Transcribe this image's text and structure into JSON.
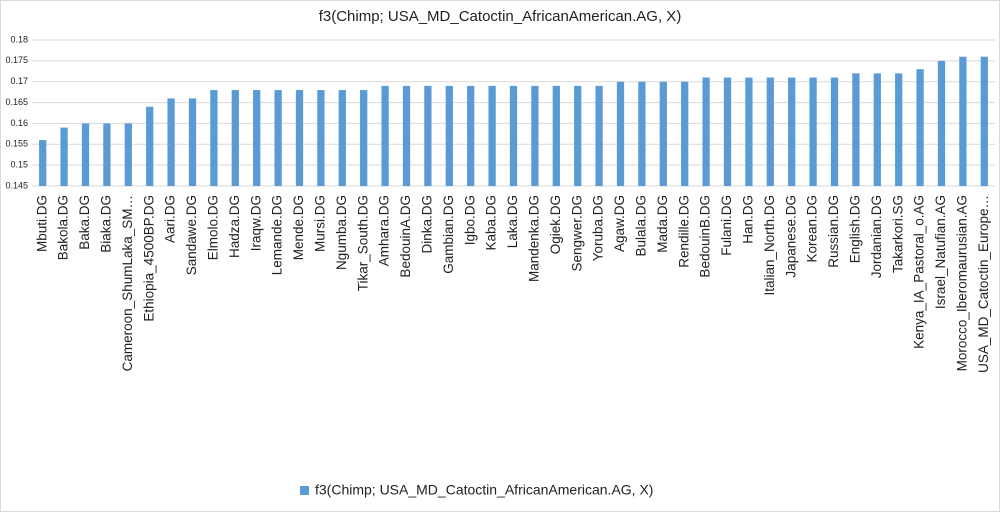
{
  "chart_data": {
    "type": "bar",
    "title": "f3(Chimp; USA_MD_Catoctin_AfricanAmerican.AG, X)",
    "categories": [
      "Mbuti.DG",
      "Bakola.DG",
      "Baka.DG",
      "Biaka.DG",
      "Cameroon_ShumLaka_SM…",
      "Ethiopia_4500BP.DG",
      "Aari.DG",
      "Sandawe.DG",
      "Elmolo.DG",
      "Hadza.DG",
      "Iraqw.DG",
      "Lemande.DG",
      "Mende.DG",
      "Mursi.DG",
      "Ngumba.DG",
      "Tikar_South.DG",
      "Amhara.DG",
      "BedouinA.DG",
      "Dinka.DG",
      "Gambian.DG",
      "Igbo.DG",
      "Kaba.DG",
      "Laka.DG",
      "Mandenka.DG",
      "Ogiek.DG",
      "Sengwer.DG",
      "Yoruba.DG",
      "Agaw.DG",
      "Bulala.DG",
      "Mada.DG",
      "Rendille.DG",
      "BedouinB.DG",
      "Fulani.DG",
      "Han.DG",
      "Italian_North.DG",
      "Japanese.DG",
      "Korean.DG",
      "Russian.DG",
      "English.DG",
      "Jordanian.DG",
      "Takarkori.SG",
      "Kenya_IA_Pastoral_o.AG",
      "Israel_Natufian.AG",
      "Morocco_Iberomaurusian.AG",
      "USA_MD_Catoctin_Europe…"
    ],
    "series": [
      {
        "name": "f3(Chimp; USA_MD_Catoctin_AfricanAmerican.AG, X)",
        "color": "#5b9bd5",
        "values": [
          0.156,
          0.159,
          0.16,
          0.16,
          0.16,
          0.164,
          0.166,
          0.166,
          0.168,
          0.168,
          0.168,
          0.168,
          0.168,
          0.168,
          0.168,
          0.168,
          0.169,
          0.169,
          0.169,
          0.169,
          0.169,
          0.169,
          0.169,
          0.169,
          0.169,
          0.169,
          0.169,
          0.17,
          0.17,
          0.17,
          0.17,
          0.171,
          0.171,
          0.171,
          0.171,
          0.171,
          0.171,
          0.171,
          0.172,
          0.172,
          0.172,
          0.173,
          0.175,
          0.176,
          0.176
        ]
      }
    ],
    "ylim": [
      0.145,
      0.18
    ],
    "yticks": [
      0.145,
      0.15,
      0.155,
      0.16,
      0.165,
      0.17,
      0.175,
      0.18
    ],
    "grid": true,
    "legend": "bottom"
  }
}
